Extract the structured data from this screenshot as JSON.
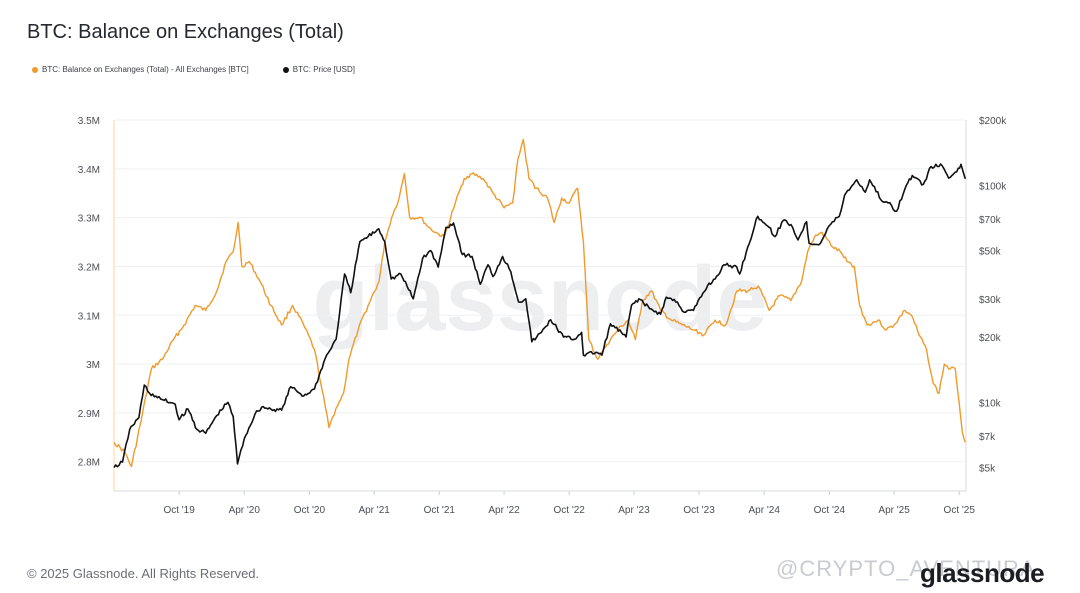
{
  "header": {
    "title": "BTC: Balance on Exchanges (Total)"
  },
  "legend": [
    {
      "label": "BTC: Balance on Exchanges (Total) - All Exchanges [BTC]",
      "color": "#f09a2b"
    },
    {
      "label": "BTC: Price [USD]",
      "color": "#111111"
    }
  ],
  "footer": {
    "copyright": "© 2025 Glassnode. All Rights Reserved.",
    "credit": "@CRYPTO_AVENTURA",
    "logo": "glassnode",
    "watermark": "glassnode"
  },
  "chart_data": {
    "type": "line",
    "x_range": [
      "2019-04-01",
      "2025-10-20"
    ],
    "x_ticks": [
      {
        "date": "2019-10-01",
        "label": "Oct '19"
      },
      {
        "date": "2020-04-01",
        "label": "Apr '20"
      },
      {
        "date": "2020-10-01",
        "label": "Oct '20"
      },
      {
        "date": "2021-04-01",
        "label": "Apr '21"
      },
      {
        "date": "2021-10-01",
        "label": "Oct '21"
      },
      {
        "date": "2022-04-01",
        "label": "Apr '22"
      },
      {
        "date": "2022-10-01",
        "label": "Oct '22"
      },
      {
        "date": "2023-04-01",
        "label": "Apr '23"
      },
      {
        "date": "2023-10-01",
        "label": "Oct '23"
      },
      {
        "date": "2024-04-01",
        "label": "Apr '24"
      },
      {
        "date": "2024-10-01",
        "label": "Oct '24"
      },
      {
        "date": "2025-04-01",
        "label": "Apr '25"
      },
      {
        "date": "2025-10-01",
        "label": "Oct '25"
      }
    ],
    "y_left": {
      "scale": "linear",
      "range": [
        2740000,
        3500000
      ],
      "ticks": [
        {
          "value": 2800000,
          "label": "2.8M"
        },
        {
          "value": 2900000,
          "label": "2.9M"
        },
        {
          "value": 3000000,
          "label": "3M"
        },
        {
          "value": 3100000,
          "label": "3.1M"
        },
        {
          "value": 3200000,
          "label": "3.2M"
        },
        {
          "value": 3300000,
          "label": "3.3M"
        },
        {
          "value": 3400000,
          "label": "3.4M"
        },
        {
          "value": 3500000,
          "label": "3.5M"
        }
      ]
    },
    "y_right": {
      "scale": "log",
      "range": [
        3900,
        200000
      ],
      "ticks": [
        {
          "value": 5000,
          "label": "$5k"
        },
        {
          "value": 7000,
          "label": "$7k"
        },
        {
          "value": 10000,
          "label": "$10k"
        },
        {
          "value": 20000,
          "label": "$20k"
        },
        {
          "value": 30000,
          "label": "$30k"
        },
        {
          "value": 50000,
          "label": "$50k"
        },
        {
          "value": 70000,
          "label": "$70k"
        },
        {
          "value": 100000,
          "label": "$100k"
        },
        {
          "value": 200000,
          "label": "$200k"
        }
      ]
    },
    "grid": true,
    "legend_position": "top-left",
    "series": [
      {
        "name": "BTC: Balance on Exchanges (Total) - All Exchanges [BTC]",
        "axis": "left",
        "color": "#f09a2b",
        "points": [
          [
            "2019-04-01",
            2840000
          ],
          [
            "2019-05-01",
            2820000
          ],
          [
            "2019-05-20",
            2790000
          ],
          [
            "2019-06-15",
            2880000
          ],
          [
            "2019-07-15",
            2990000
          ],
          [
            "2019-08-15",
            3010000
          ],
          [
            "2019-09-15",
            3050000
          ],
          [
            "2019-10-15",
            3080000
          ],
          [
            "2019-11-15",
            3120000
          ],
          [
            "2019-12-15",
            3110000
          ],
          [
            "2020-01-15",
            3150000
          ],
          [
            "2020-02-10",
            3210000
          ],
          [
            "2020-03-01",
            3230000
          ],
          [
            "2020-03-15",
            3290000
          ],
          [
            "2020-03-25",
            3200000
          ],
          [
            "2020-04-15",
            3210000
          ],
          [
            "2020-05-15",
            3170000
          ],
          [
            "2020-06-15",
            3120000
          ],
          [
            "2020-07-15",
            3080000
          ],
          [
            "2020-08-15",
            3120000
          ],
          [
            "2020-09-15",
            3080000
          ],
          [
            "2020-10-15",
            3030000
          ],
          [
            "2020-11-05",
            2950000
          ],
          [
            "2020-11-25",
            2870000
          ],
          [
            "2020-12-15",
            2910000
          ],
          [
            "2021-01-05",
            2940000
          ],
          [
            "2021-01-20",
            3010000
          ],
          [
            "2021-02-15",
            3070000
          ],
          [
            "2021-03-15",
            3120000
          ],
          [
            "2021-04-15",
            3170000
          ],
          [
            "2021-05-01",
            3250000
          ],
          [
            "2021-05-20",
            3300000
          ],
          [
            "2021-06-10",
            3340000
          ],
          [
            "2021-06-25",
            3390000
          ],
          [
            "2021-07-10",
            3300000
          ],
          [
            "2021-08-10",
            3300000
          ],
          [
            "2021-09-01",
            3280000
          ],
          [
            "2021-09-20",
            3270000
          ],
          [
            "2021-10-15",
            3260000
          ],
          [
            "2021-11-15",
            3330000
          ],
          [
            "2021-12-10",
            3380000
          ],
          [
            "2022-01-01",
            3390000
          ],
          [
            "2022-02-01",
            3380000
          ],
          [
            "2022-03-01",
            3350000
          ],
          [
            "2022-04-01",
            3320000
          ],
          [
            "2022-04-25",
            3330000
          ],
          [
            "2022-05-10",
            3420000
          ],
          [
            "2022-05-25",
            3460000
          ],
          [
            "2022-06-10",
            3380000
          ],
          [
            "2022-07-01",
            3360000
          ],
          [
            "2022-08-01",
            3340000
          ],
          [
            "2022-08-20",
            3290000
          ],
          [
            "2022-09-10",
            3340000
          ],
          [
            "2022-10-01",
            3330000
          ],
          [
            "2022-10-25",
            3360000
          ],
          [
            "2022-11-10",
            3250000
          ],
          [
            "2022-11-25",
            3050000
          ],
          [
            "2022-12-20",
            3010000
          ],
          [
            "2023-01-15",
            3040000
          ],
          [
            "2023-02-15",
            3070000
          ],
          [
            "2023-03-15",
            3090000
          ],
          [
            "2023-04-05",
            3050000
          ],
          [
            "2023-04-25",
            3130000
          ],
          [
            "2023-05-20",
            3150000
          ],
          [
            "2023-06-15",
            3110000
          ],
          [
            "2023-07-15",
            3090000
          ],
          [
            "2023-08-15",
            3080000
          ],
          [
            "2023-09-15",
            3070000
          ],
          [
            "2023-10-15",
            3060000
          ],
          [
            "2023-11-15",
            3090000
          ],
          [
            "2023-12-15",
            3080000
          ],
          [
            "2024-01-15",
            3150000
          ],
          [
            "2024-02-15",
            3150000
          ],
          [
            "2024-03-15",
            3160000
          ],
          [
            "2024-04-15",
            3110000
          ],
          [
            "2024-05-15",
            3140000
          ],
          [
            "2024-06-15",
            3130000
          ],
          [
            "2024-07-15",
            3170000
          ],
          [
            "2024-08-01",
            3230000
          ],
          [
            "2024-08-20",
            3260000
          ],
          [
            "2024-09-10",
            3270000
          ],
          [
            "2024-10-10",
            3240000
          ],
          [
            "2024-11-01",
            3230000
          ],
          [
            "2024-11-20",
            3210000
          ],
          [
            "2024-12-10",
            3200000
          ],
          [
            "2024-12-25",
            3120000
          ],
          [
            "2025-01-15",
            3080000
          ],
          [
            "2025-02-15",
            3090000
          ],
          [
            "2025-03-10",
            3070000
          ],
          [
            "2025-04-01",
            3080000
          ],
          [
            "2025-05-01",
            3110000
          ],
          [
            "2025-05-20",
            3100000
          ],
          [
            "2025-06-10",
            3060000
          ],
          [
            "2025-07-01",
            3030000
          ],
          [
            "2025-07-20",
            2960000
          ],
          [
            "2025-08-05",
            2940000
          ],
          [
            "2025-08-20",
            3000000
          ],
          [
            "2025-09-05",
            2990000
          ],
          [
            "2025-09-20",
            2990000
          ],
          [
            "2025-10-01",
            2920000
          ],
          [
            "2025-10-10",
            2860000
          ],
          [
            "2025-10-18",
            2840000
          ]
        ]
      },
      {
        "name": "BTC: Price [USD]",
        "axis": "right",
        "color": "#111111",
        "points": [
          [
            "2019-04-01",
            5000
          ],
          [
            "2019-04-25",
            5300
          ],
          [
            "2019-05-15",
            7500
          ],
          [
            "2019-06-10",
            8500
          ],
          [
            "2019-06-25",
            12000
          ],
          [
            "2019-07-10",
            11000
          ],
          [
            "2019-08-01",
            10500
          ],
          [
            "2019-08-20",
            10200
          ],
          [
            "2019-09-20",
            9800
          ],
          [
            "2019-10-01",
            8300
          ],
          [
            "2019-10-26",
            9300
          ],
          [
            "2019-11-20",
            7500
          ],
          [
            "2019-12-15",
            7200
          ],
          [
            "2020-01-15",
            8700
          ],
          [
            "2020-02-15",
            10000
          ],
          [
            "2020-03-01",
            8600
          ],
          [
            "2020-03-13",
            5200
          ],
          [
            "2020-04-01",
            6800
          ],
          [
            "2020-05-01",
            8800
          ],
          [
            "2020-05-20",
            9500
          ],
          [
            "2020-06-15",
            9300
          ],
          [
            "2020-07-15",
            9200
          ],
          [
            "2020-08-10",
            11800
          ],
          [
            "2020-09-15",
            10700
          ],
          [
            "2020-10-15",
            11500
          ],
          [
            "2020-11-15",
            16000
          ],
          [
            "2020-12-15",
            19500
          ],
          [
            "2021-01-08",
            39000
          ],
          [
            "2021-01-25",
            32000
          ],
          [
            "2021-02-20",
            55000
          ],
          [
            "2021-03-15",
            58000
          ],
          [
            "2021-04-14",
            63000
          ],
          [
            "2021-05-01",
            55000
          ],
          [
            "2021-05-19",
            37000
          ],
          [
            "2021-06-15",
            39000
          ],
          [
            "2021-07-20",
            30000
          ],
          [
            "2021-08-15",
            46000
          ],
          [
            "2021-09-07",
            50000
          ],
          [
            "2021-09-28",
            42000
          ],
          [
            "2021-10-20",
            64000
          ],
          [
            "2021-11-10",
            67000
          ],
          [
            "2021-12-05",
            48000
          ],
          [
            "2022-01-01",
            47000
          ],
          [
            "2022-01-24",
            35000
          ],
          [
            "2022-02-15",
            43000
          ],
          [
            "2022-03-01",
            38000
          ],
          [
            "2022-03-28",
            47000
          ],
          [
            "2022-04-20",
            40000
          ],
          [
            "2022-05-12",
            29000
          ],
          [
            "2022-06-01",
            30000
          ],
          [
            "2022-06-18",
            19000
          ],
          [
            "2022-07-15",
            21000
          ],
          [
            "2022-08-10",
            24000
          ],
          [
            "2022-09-15",
            20000
          ],
          [
            "2022-10-15",
            19500
          ],
          [
            "2022-11-05",
            21000
          ],
          [
            "2022-11-10",
            16500
          ],
          [
            "2022-12-15",
            17000
          ],
          [
            "2023-01-01",
            16500
          ],
          [
            "2023-01-25",
            23000
          ],
          [
            "2023-03-10",
            20000
          ],
          [
            "2023-03-25",
            28000
          ],
          [
            "2023-04-15",
            30000
          ],
          [
            "2023-05-15",
            27000
          ],
          [
            "2023-06-15",
            25500
          ],
          [
            "2023-07-01",
            30500
          ],
          [
            "2023-08-01",
            29000
          ],
          [
            "2023-08-20",
            26000
          ],
          [
            "2023-09-15",
            26500
          ],
          [
            "2023-10-25",
            34500
          ],
          [
            "2023-11-15",
            37000
          ],
          [
            "2023-12-10",
            43000
          ],
          [
            "2024-01-15",
            42000
          ],
          [
            "2024-01-23",
            39000
          ],
          [
            "2024-02-15",
            52000
          ],
          [
            "2024-03-14",
            72000
          ],
          [
            "2024-04-15",
            64000
          ],
          [
            "2024-05-01",
            58000
          ],
          [
            "2024-05-25",
            69000
          ],
          [
            "2024-06-15",
            66000
          ],
          [
            "2024-07-05",
            56000
          ],
          [
            "2024-07-29",
            68000
          ],
          [
            "2024-08-05",
            54000
          ],
          [
            "2024-09-06",
            54000
          ],
          [
            "2024-09-30",
            65000
          ],
          [
            "2024-10-29",
            72000
          ],
          [
            "2024-11-13",
            90000
          ],
          [
            "2024-12-17",
            106000
          ],
          [
            "2025-01-10",
            93000
          ],
          [
            "2025-01-22",
            106000
          ],
          [
            "2025-02-28",
            84000
          ],
          [
            "2025-03-15",
            83000
          ],
          [
            "2025-04-08",
            76000
          ],
          [
            "2025-05-01",
            96000
          ],
          [
            "2025-05-22",
            111000
          ],
          [
            "2025-06-22",
            101000
          ],
          [
            "2025-07-14",
            122000
          ],
          [
            "2025-08-14",
            123000
          ],
          [
            "2025-09-01",
            108000
          ],
          [
            "2025-09-20",
            115000
          ],
          [
            "2025-10-06",
            125000
          ],
          [
            "2025-10-18",
            107000
          ]
        ]
      }
    ]
  }
}
